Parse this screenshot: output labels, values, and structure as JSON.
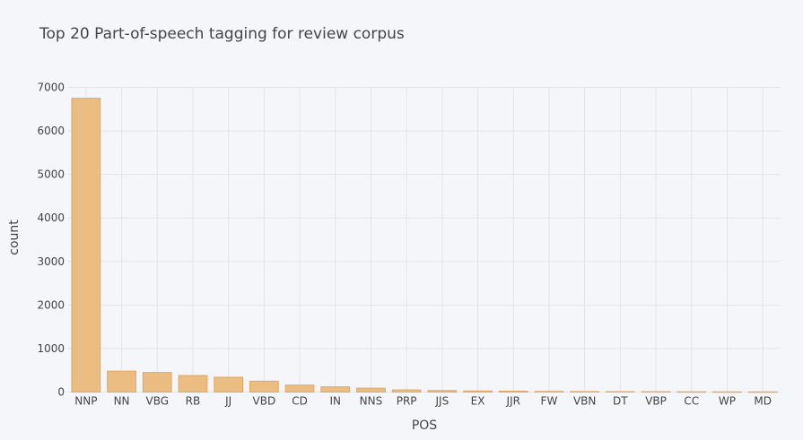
{
  "chart_data": {
    "type": "bar",
    "title": "Top 20 Part-of-speech tagging for review corpus",
    "xlabel": "POS",
    "ylabel": "count",
    "categories": [
      "NNP",
      "NN",
      "VBG",
      "RB",
      "JJ",
      "VBD",
      "CD",
      "IN",
      "NNS",
      "PRP",
      "JJS",
      "EX",
      "JJR",
      "FW",
      "VBN",
      "DT",
      "VBP",
      "CC",
      "WP",
      "MD"
    ],
    "values": [
      6750,
      480,
      450,
      380,
      340,
      250,
      160,
      120,
      90,
      50,
      35,
      25,
      20,
      15,
      12,
      10,
      8,
      6,
      5,
      4
    ],
    "ylim": [
      0,
      7000
    ],
    "yticks": [
      0,
      1000,
      2000,
      3000,
      4000,
      5000,
      6000,
      7000
    ],
    "grid": true,
    "colors": {
      "bar_fill": "#ebbd82",
      "bar_stroke": "#e6a65f",
      "background": "#f5f6fa",
      "grid": "#e3e4ea"
    }
  }
}
